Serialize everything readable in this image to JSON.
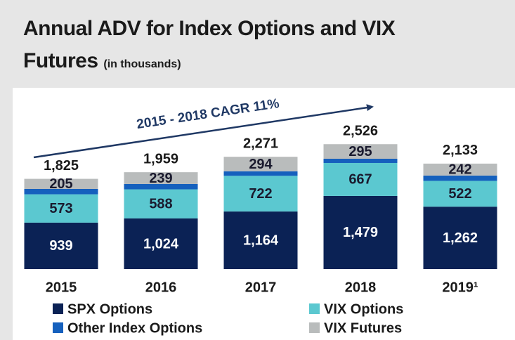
{
  "chart_data": {
    "type": "stacked_bar",
    "title": "Annual ADV for Index Options and VIX Futures",
    "subtitle": "(in thousands)",
    "annotation": "2015 - 2018 CAGR 11%",
    "categories": [
      "2015",
      "2016",
      "2017",
      "2018",
      "2019¹"
    ],
    "ylim": [
      0,
      2700
    ],
    "series": [
      {
        "name": "SPX Options",
        "color": "#0b2255",
        "values": [
          939,
          1024,
          1164,
          1479,
          1262
        ],
        "value_labels": [
          "939",
          "1,024",
          "1,164",
          "1,479",
          "1,262"
        ]
      },
      {
        "name": "VIX Options",
        "color": "#5bc8d0",
        "values": [
          573,
          588,
          722,
          667,
          522
        ]
      },
      {
        "name": "Other Index Options",
        "color": "#1560bd",
        "values": [
          108,
          108,
          91,
          85,
          107
        ]
      },
      {
        "name": "VIX Futures",
        "color": "#b9bcbc",
        "values": [
          205,
          239,
          294,
          295,
          242
        ]
      }
    ],
    "totals": [
      1825,
      1959,
      2271,
      2526,
      2133
    ],
    "total_labels": [
      "1,825",
      "1,959",
      "2,271",
      "2,526",
      "2,133"
    ],
    "legend": "bottom"
  }
}
